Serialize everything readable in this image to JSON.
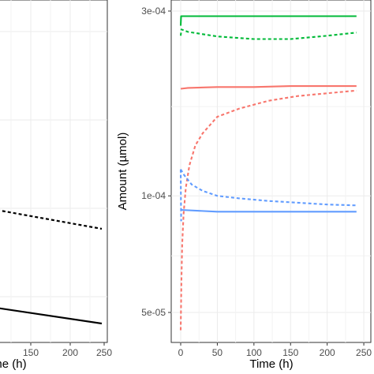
{
  "chart_data": [
    {
      "type": "line",
      "xlabel": "Time (h)",
      "ylabel": "",
      "x_ticks": [
        "150",
        "200",
        "250"
      ],
      "xlim": [
        0,
        250
      ],
      "grid": true,
      "legend": "none",
      "series": [
        {
          "color": "#000000",
          "linestyle": "dashed",
          "points": [
            [
              45,
              1.35
            ],
            [
              240,
              1.0
            ]
          ]
        },
        {
          "color": "#000000",
          "linestyle": "solid",
          "points": [
            [
              45,
              0.09
            ],
            [
              240,
              -0.2
            ]
          ]
        }
      ]
    },
    {
      "type": "line",
      "scale_y": "log",
      "xlabel": "Time (h)",
      "ylabel": "Amount (µmol)",
      "x_ticks": [
        "0",
        "50",
        "100",
        "150",
        "200",
        "250"
      ],
      "y_ticks": [
        "5e-05",
        "1e-04",
        "3e-04"
      ],
      "xlim": [
        -12,
        250
      ],
      "ylim": [
        4.2e-05,
        0.00033
      ],
      "grid": true,
      "legend": "none",
      "series": [
        {
          "color": "#00ba38",
          "linestyle": "solid",
          "points": [
            [
              0,
              0.000275
            ],
            [
              0.5,
              0.000291
            ],
            [
              240,
              0.000291
            ]
          ]
        },
        {
          "color": "#00ba38",
          "linestyle": "dashed",
          "points": [
            [
              0,
              0.000259
            ],
            [
              1,
              0.000269
            ],
            [
              10,
              0.000265
            ],
            [
              50,
              0.000258
            ],
            [
              100,
              0.000254
            ],
            [
              150,
              0.000254
            ],
            [
              200,
              0.000259
            ],
            [
              240,
              0.000264
            ]
          ]
        },
        {
          "color": "#f8766d",
          "linestyle": "solid",
          "points": [
            [
              0,
              0.000189
            ],
            [
              10,
              0.00019
            ],
            [
              50,
              0.000191
            ],
            [
              100,
              0.000191
            ],
            [
              150,
              0.000192
            ],
            [
              240,
              0.000192
            ]
          ]
        },
        {
          "color": "#f8766d",
          "linestyle": "dashed",
          "points": [
            [
              0,
              4.5e-05
            ],
            [
              1,
              6e-05
            ],
            [
              2,
              7.5e-05
            ],
            [
              4,
              9e-05
            ],
            [
              7,
              0.000105
            ],
            [
              12,
              0.00012
            ],
            [
              20,
              0.000135
            ],
            [
              30,
              0.000145
            ],
            [
              50,
              0.00016
            ],
            [
              80,
              0.000168
            ],
            [
              120,
              0.000176
            ],
            [
              160,
              0.000181
            ],
            [
              200,
              0.000184
            ],
            [
              240,
              0.000187
            ]
          ]
        },
        {
          "color": "#619cff",
          "linestyle": "solid",
          "points": [
            [
              0,
              9.2e-05
            ],
            [
              50,
              9.1e-05
            ],
            [
              150,
              9.1e-05
            ],
            [
              240,
              9.1e-05
            ]
          ]
        },
        {
          "color": "#619cff",
          "linestyle": "dashed",
          "points": [
            [
              0,
              0.000117
            ],
            [
              5,
              0.000113
            ],
            [
              15,
              0.000107
            ],
            [
              30,
              0.000103
            ],
            [
              50,
              0.0001
            ],
            [
              80,
              9.85e-05
            ],
            [
              120,
              9.7e-05
            ],
            [
              160,
              9.6e-05
            ],
            [
              200,
              9.5e-05
            ],
            [
              240,
              9.45e-05
            ]
          ]
        },
        {
          "color": "#619cff",
          "linestyle": "dashed",
          "points": [
            [
              0,
              0.000117
            ],
            [
              0.3,
              9.8e-05
            ],
            [
              0.7,
              8.6e-05
            ]
          ]
        }
      ]
    }
  ]
}
